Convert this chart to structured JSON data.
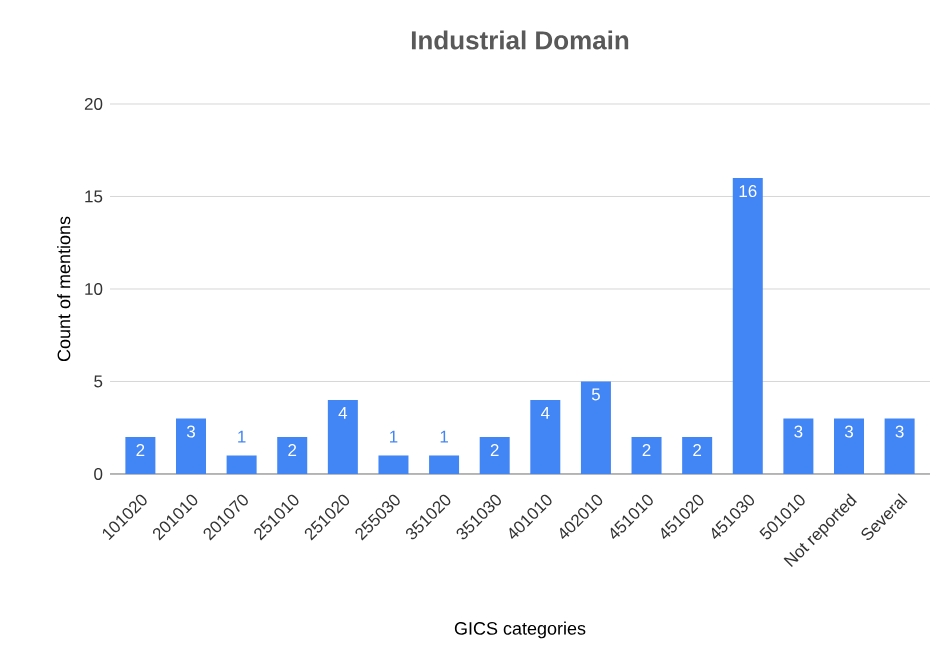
{
  "chart_data": {
    "type": "bar",
    "title": "Industrial Domain",
    "xlabel": "GICS categories",
    "ylabel": "Count of mentions",
    "categories": [
      "101020",
      "201010",
      "201070",
      "251010",
      "251020",
      "255030",
      "351020",
      "351030",
      "401010",
      "402010",
      "451010",
      "451020",
      "451030",
      "501010",
      "Not reported",
      "Several"
    ],
    "values": [
      2,
      3,
      1,
      2,
      4,
      1,
      1,
      2,
      4,
      5,
      2,
      2,
      16,
      3,
      3,
      3
    ],
    "color": "#4285f4",
    "ylim": [
      0,
      20
    ],
    "yticks": [
      0,
      5,
      10,
      15,
      20
    ],
    "grid": "y",
    "data_labels": true
  }
}
